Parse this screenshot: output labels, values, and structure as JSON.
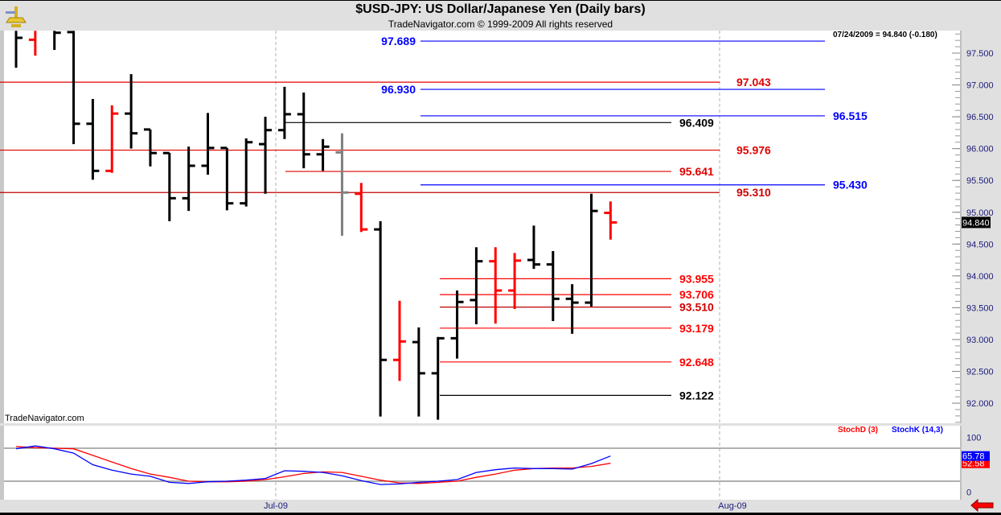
{
  "header": {
    "title": "$USD-JPY:  US Dollar/Japanese Yen  (Daily bars)",
    "subtitle": "TradeNavigator.com © 1999-2009 All rights reserved",
    "logo_icon": "sextant-icon"
  },
  "watermark": "TradeNavigator.com",
  "last_quote": "07/24/2009 = 94.840 (-0.180)",
  "nav_arrow_icon": "red-left-arrow-icon",
  "chart_data": [
    {
      "type": "ohlc",
      "title": "$USD-JPY:  US Dollar/Japanese Yen  (Daily bars)",
      "ylim": [
        91.7,
        97.85
      ],
      "y_ticks": [
        "92.000",
        "92.500",
        "93.000",
        "93.500",
        "94.000",
        "94.500",
        "95.000",
        "95.500",
        "96.000",
        "96.500",
        "97.000",
        "97.500"
      ],
      "x_ticks": [
        "Jul-09",
        "Aug-09"
      ],
      "last_price_label": "94.840",
      "colors": {
        "up": "#000000",
        "down": "#ff0000",
        "neutral": "#808080"
      },
      "bars": [
        {
          "o": null,
          "h": 97.9,
          "l": 97.27,
          "c": 97.74,
          "color": "#000000"
        },
        {
          "o": 97.71,
          "h": 97.9,
          "l": 97.46,
          "c": null,
          "color": "#ff0000"
        },
        {
          "o": null,
          "h": 97.85,
          "l": 97.55,
          "c": 97.82,
          "color": "#000000"
        },
        {
          "o": 97.83,
          "h": 97.85,
          "l": 96.07,
          "c": 96.39,
          "color": "#000000"
        },
        {
          "o": 96.39,
          "h": 96.78,
          "l": 95.51,
          "c": 95.65,
          "color": "#000000"
        },
        {
          "o": 95.65,
          "h": 96.68,
          "l": 95.62,
          "c": 96.55,
          "color": "#ff0000"
        },
        {
          "o": 96.55,
          "h": 97.17,
          "l": 96.0,
          "c": 96.24,
          "color": "#000000"
        },
        {
          "o": 96.3,
          "h": 96.3,
          "l": 95.72,
          "c": 95.93,
          "color": "#000000"
        },
        {
          "o": 95.93,
          "h": 95.93,
          "l": 94.86,
          "c": 95.22,
          "color": "#000000"
        },
        {
          "o": 95.22,
          "h": 96.03,
          "l": 95.02,
          "c": 95.73,
          "color": "#000000"
        },
        {
          "o": 95.73,
          "h": 96.56,
          "l": 95.59,
          "c": 96.01,
          "color": "#000000"
        },
        {
          "o": 96.01,
          "h": 96.01,
          "l": 95.03,
          "c": 95.14,
          "color": "#000000"
        },
        {
          "o": 95.14,
          "h": 96.16,
          "l": 95.09,
          "c": 96.1,
          "color": "#000000"
        },
        {
          "o": 96.07,
          "h": 96.5,
          "l": 95.29,
          "c": 96.29,
          "color": "#000000"
        },
        {
          "o": 96.29,
          "h": 96.97,
          "l": 96.15,
          "c": 96.54,
          "color": "#000000"
        },
        {
          "o": 96.54,
          "h": 96.88,
          "l": 95.69,
          "c": 95.91,
          "color": "#000000"
        },
        {
          "o": 95.91,
          "h": 96.15,
          "l": 95.65,
          "c": 96.03,
          "color": "#000000"
        },
        {
          "o": 95.94,
          "h": 96.24,
          "l": 94.63,
          "c": 95.31,
          "color": "#808080"
        },
        {
          "o": 95.29,
          "h": 95.46,
          "l": 94.69,
          "c": 94.73,
          "color": "#ff0000"
        },
        {
          "o": 94.73,
          "h": 94.86,
          "l": 91.79,
          "c": 92.68,
          "color": "#000000"
        },
        {
          "o": 92.68,
          "h": 93.61,
          "l": 92.35,
          "c": 92.97,
          "color": "#ff0000"
        },
        {
          "o": 92.96,
          "h": 93.19,
          "l": 91.79,
          "c": 92.47,
          "color": "#000000"
        },
        {
          "o": 92.47,
          "h": 93.04,
          "l": 91.74,
          "c": 93.02,
          "color": "#000000"
        },
        {
          "o": 93.02,
          "h": 93.77,
          "l": 92.7,
          "c": 93.59,
          "color": "#000000"
        },
        {
          "o": 93.62,
          "h": 94.45,
          "l": 93.24,
          "c": 94.23,
          "color": "#000000"
        },
        {
          "o": 94.23,
          "h": 94.45,
          "l": 93.25,
          "c": 93.77,
          "color": "#ff0000"
        },
        {
          "o": 93.77,
          "h": 94.36,
          "l": 93.48,
          "c": 94.24,
          "color": "#ff0000"
        },
        {
          "o": 94.25,
          "h": 94.79,
          "l": 94.11,
          "c": 94.18,
          "color": "#000000"
        },
        {
          "o": 94.18,
          "h": 94.39,
          "l": 93.29,
          "c": 93.64,
          "color": "#000000"
        },
        {
          "o": 93.64,
          "h": 93.87,
          "l": 93.09,
          "c": 93.58,
          "color": "#000000"
        },
        {
          "o": 93.58,
          "h": 95.29,
          "l": 93.52,
          "c": 95.02,
          "color": "#000000"
        },
        {
          "o": 94.99,
          "h": 95.17,
          "l": 94.57,
          "c": 94.84,
          "color": "#ff0000"
        }
      ],
      "levels": [
        {
          "label": "97.689",
          "price": 97.689,
          "color": "#0000ff",
          "span": "right",
          "label_side": "left"
        },
        {
          "label": "97.043",
          "price": 97.043,
          "color": "#e00000",
          "span": "full",
          "label_side": "end"
        },
        {
          "label": "96.930",
          "price": 96.93,
          "color": "#0000ff",
          "span": "right",
          "label_side": "left"
        },
        {
          "label": "96.515",
          "price": 96.515,
          "color": "#0000ff",
          "span": "right",
          "label_side": "end"
        },
        {
          "label": "96.409",
          "price": 96.409,
          "color": "#000000",
          "span": "mid",
          "label_side": "end"
        },
        {
          "label": "95.976",
          "price": 95.976,
          "color": "#e00000",
          "span": "full",
          "label_side": "end"
        },
        {
          "label": "95.641",
          "price": 95.641,
          "color": "#e00000",
          "span": "mid",
          "label_side": "end"
        },
        {
          "label": "95.430",
          "price": 95.43,
          "color": "#0000ff",
          "span": "right",
          "label_side": "end"
        },
        {
          "label": "95.310",
          "price": 95.31,
          "color": "#c00000",
          "span": "full",
          "label_side": "end"
        },
        {
          "label": "93.955",
          "price": 93.955,
          "color": "#ff0000",
          "span": "low",
          "label_side": "end"
        },
        {
          "label": "93.706",
          "price": 93.706,
          "color": "#ff0000",
          "span": "low",
          "label_side": "end"
        },
        {
          "label": "93.510",
          "price": 93.51,
          "color": "#c00000",
          "span": "low",
          "label_side": "end"
        },
        {
          "label": "93.179",
          "price": 93.179,
          "color": "#ff0000",
          "span": "low",
          "label_side": "end"
        },
        {
          "label": "92.648",
          "price": 92.648,
          "color": "#ff0000",
          "span": "low",
          "label_side": "end"
        },
        {
          "label": "92.122",
          "price": 92.122,
          "color": "#000000",
          "span": "low",
          "label_side": "end"
        }
      ]
    },
    {
      "type": "line",
      "ylim": [
        0,
        100
      ],
      "y_ticks": [
        "100",
        "0"
      ],
      "reference_lines": [
        80,
        20
      ],
      "series": [
        {
          "name": "StochD (3)",
          "color": "#ff0000",
          "last_label": "52.58",
          "values": [
            83,
            81,
            80,
            79,
            67,
            55,
            43,
            33,
            27,
            20,
            19,
            19,
            20,
            23,
            28,
            34,
            37,
            36,
            29,
            22,
            17,
            16,
            18,
            20,
            27,
            33,
            40,
            43,
            44,
            44,
            47,
            52.58
          ]
        },
        {
          "name": "StochK (14,3)",
          "color": "#0000ff",
          "last_label": "65.78",
          "values": [
            79,
            84,
            79,
            71,
            50,
            40,
            33,
            29,
            18,
            16,
            19,
            20,
            22,
            25,
            39,
            38,
            36,
            30,
            21,
            14,
            15,
            18,
            20,
            23,
            36,
            41,
            44,
            43,
            43,
            42,
            52,
            65.78
          ]
        }
      ]
    }
  ]
}
